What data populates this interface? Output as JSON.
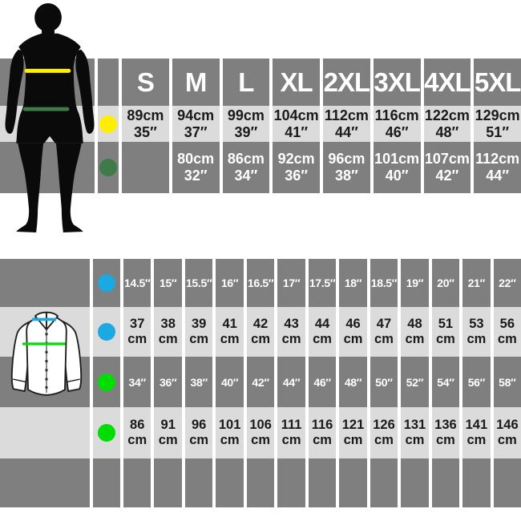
{
  "colors": {
    "band_dark": "#7f7f7f",
    "band_light": "#dbdbdb",
    "text_on_dark": "#ffffff",
    "text_on_light": "#1a1a1a",
    "dot_yellow": "#ffee00",
    "dot_dark_green": "#3e7a4a",
    "dot_blue": "#1ca9e1",
    "dot_bright_green": "#00dd00",
    "silhouette_black": "#0a0a0a",
    "shirt_outline": "#1f1f1f"
  },
  "size_table": {
    "header": [
      "S",
      "M",
      "L",
      "XL",
      "2XL",
      "3XL",
      "4XL",
      "5XL"
    ],
    "rows": [
      {
        "dot": "yellow-dot",
        "dot_color": "#ffee00",
        "shade": "light",
        "cells": [
          [
            "89cm",
            "35″"
          ],
          [
            "94cm",
            "37″"
          ],
          [
            "99cm",
            "39″"
          ],
          [
            "104cm",
            "41″"
          ],
          [
            "112cm",
            "44″"
          ],
          [
            "116cm",
            "46″"
          ],
          [
            "122cm",
            "48″"
          ],
          [
            "129cm",
            "51″"
          ]
        ]
      },
      {
        "dot": "dark-green-dot",
        "dot_color": "#3e7a4a",
        "shade": "dark",
        "cells": [
          [],
          [
            "80cm",
            "32″"
          ],
          [
            "86cm",
            "34″"
          ],
          [
            "92cm",
            "36″"
          ],
          [
            "96cm",
            "38″"
          ],
          [
            "101cm",
            "40″"
          ],
          [
            "107cm",
            "42″"
          ],
          [
            "112cm",
            "44″"
          ]
        ]
      }
    ]
  },
  "collar_table": {
    "rows": [
      {
        "dot": "blue-dot",
        "dot_color": "#1ca9e1",
        "shade": "dark",
        "cells": [
          [
            "14.5″"
          ],
          [
            "15″"
          ],
          [
            "15.5″"
          ],
          [
            "16″"
          ],
          [
            "16.5″"
          ],
          [
            "17″"
          ],
          [
            "17.5″"
          ],
          [
            "18″"
          ],
          [
            "18.5″"
          ],
          [
            "19″"
          ],
          [
            "20″"
          ],
          [
            "21″"
          ],
          [
            "22″"
          ]
        ]
      },
      {
        "dot": "blue-dot",
        "dot_color": "#1ca9e1",
        "shade": "light",
        "cells": [
          [
            "37",
            "cm"
          ],
          [
            "38",
            "cm"
          ],
          [
            "39",
            "cm"
          ],
          [
            "41",
            "cm"
          ],
          [
            "42",
            "cm"
          ],
          [
            "43",
            "cm"
          ],
          [
            "44",
            "cm"
          ],
          [
            "46",
            "cm"
          ],
          [
            "47",
            "cm"
          ],
          [
            "48",
            "cm"
          ],
          [
            "51",
            "cm"
          ],
          [
            "53",
            "cm"
          ],
          [
            "56",
            "cm"
          ]
        ]
      },
      {
        "dot": "bright-green-dot",
        "dot_color": "#00dd00",
        "shade": "dark",
        "cells": [
          [
            "34″"
          ],
          [
            "36″"
          ],
          [
            "38″"
          ],
          [
            "40″"
          ],
          [
            "42″"
          ],
          [
            "44″"
          ],
          [
            "46″"
          ],
          [
            "48″"
          ],
          [
            "50″"
          ],
          [
            "52″"
          ],
          [
            "54″"
          ],
          [
            "56″"
          ],
          [
            "58″"
          ]
        ]
      },
      {
        "dot": "bright-green-dot",
        "dot_color": "#00dd00",
        "shade": "light",
        "cells": [
          [
            "86",
            "cm"
          ],
          [
            "91",
            "cm"
          ],
          [
            "96",
            "cm"
          ],
          [
            "101",
            "cm"
          ],
          [
            "106",
            "cm"
          ],
          [
            "111",
            "cm"
          ],
          [
            "116",
            "cm"
          ],
          [
            "121",
            "cm"
          ],
          [
            "126",
            "cm"
          ],
          [
            "131",
            "cm"
          ],
          [
            "136",
            "cm"
          ],
          [
            "141",
            "cm"
          ],
          [
            "146",
            "cm"
          ]
        ]
      },
      {
        "dot": null,
        "shade": "dark",
        "cells": [
          [],
          [],
          [],
          [],
          [],
          [],
          [],
          [],
          [],
          [],
          [],
          [],
          []
        ]
      }
    ]
  }
}
